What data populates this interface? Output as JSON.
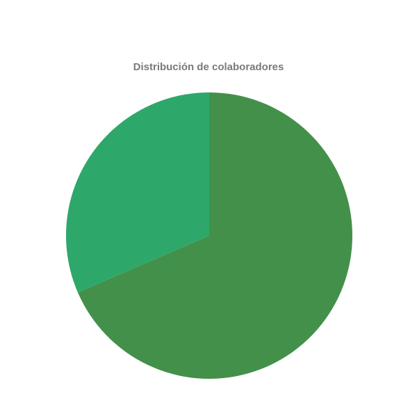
{
  "chart_data": {
    "type": "pie",
    "title": "Distribución de colaboradores",
    "slices": [
      {
        "value": 68.5,
        "color": "#43904a"
      },
      {
        "value": 31.5,
        "color": "#2ea86a"
      }
    ],
    "legend": "none"
  }
}
